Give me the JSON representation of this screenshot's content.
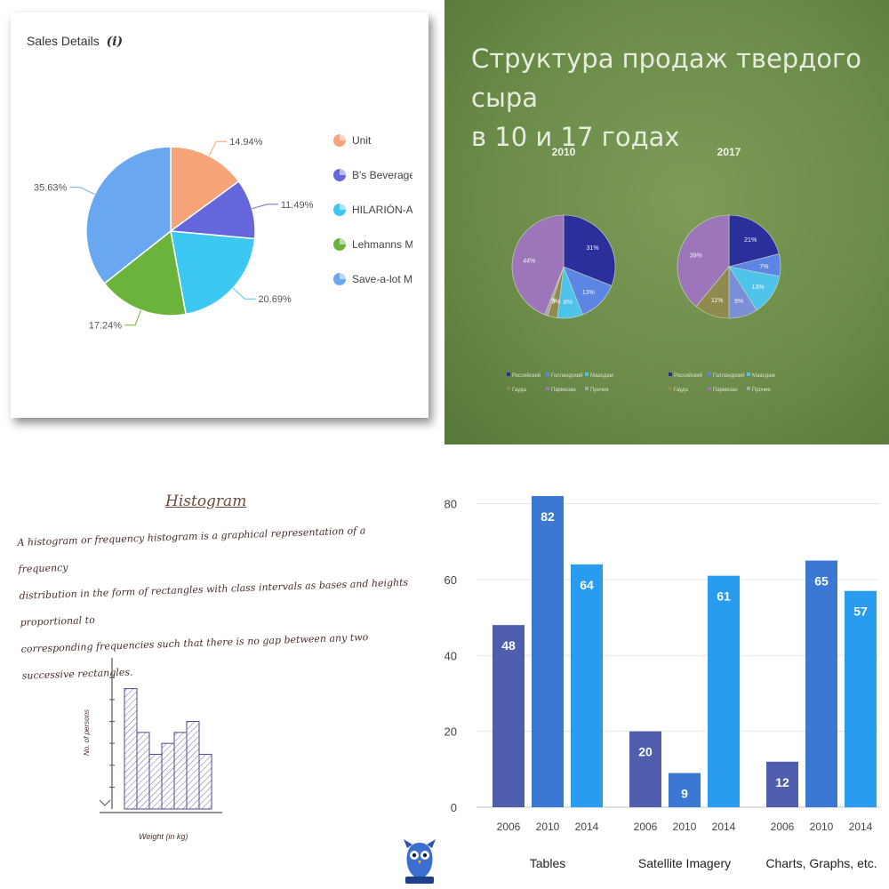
{
  "panel_pie": {
    "title": "Sales Details",
    "info_icon_label": "i",
    "chart_data": {
      "type": "pie",
      "title": "Sales Details",
      "slices": [
        {
          "label": "Unit",
          "value": 14.94,
          "value_label": "14.94%",
          "color": "#f8a47a"
        },
        {
          "label": "B's Beverages",
          "value": 11.49,
          "value_label": "11.49%",
          "color": "#6468dc"
        },
        {
          "label": "HILARIÓN-Abas",
          "value": 20.69,
          "value_label": "20.69%",
          "color": "#3dc8f3"
        },
        {
          "label": "Lehmanns Mar",
          "value": 17.24,
          "value_label": "17.24%",
          "color": "#6bb33b"
        },
        {
          "label": "Save-a-lot Mark",
          "value": 35.63,
          "value_label": "35.63%",
          "color": "#69a8f1"
        }
      ],
      "legend_position": "right"
    }
  },
  "panel_cheese": {
    "title_line1": "Структура продаж твердого сыра",
    "title_line2": "в 10 и 17 годах",
    "chart_data": [
      {
        "type": "pie",
        "title": "2010",
        "slices": [
          {
            "label": "",
            "value": 31,
            "value_label": "31%",
            "color": "#2b2f9c"
          },
          {
            "label": "",
            "value": 13,
            "value_label": "13%",
            "color": "#5d86e4"
          },
          {
            "label": "",
            "value": 8,
            "value_label": "8%",
            "color": "#4fc3ea"
          },
          {
            "label": "",
            "value": 3,
            "value_label": "3%",
            "color": "#8f8a4e"
          },
          {
            "label": "",
            "value": 1,
            "value_label": "1%",
            "color": "#a7a3a6"
          },
          {
            "label": "",
            "value": 44,
            "value_label": "44%",
            "color": "#9d76ba"
          }
        ]
      },
      {
        "type": "pie",
        "title": "2017",
        "slices": [
          {
            "label": "",
            "value": 21,
            "value_label": "21%",
            "color": "#2b2f9c"
          },
          {
            "label": "",
            "value": 7,
            "value_label": "7%",
            "color": "#5d86e4"
          },
          {
            "label": "",
            "value": 13,
            "value_label": "13%",
            "color": "#4fc3ea"
          },
          {
            "label": "",
            "value": 9,
            "value_label": "9%",
            "color": "#7a8fd6"
          },
          {
            "label": "",
            "value": 11,
            "value_label": "11%",
            "color": "#8f8a4e"
          },
          {
            "label": "",
            "value": 39,
            "value_label": "39%",
            "color": "#9d76ba"
          }
        ]
      }
    ],
    "legend_rows": [
      [
        {
          "label": "Российский",
          "color": "#2b2f9c"
        },
        {
          "label": "Голландский",
          "color": "#5d86e4"
        },
        {
          "label": "Маасдам",
          "color": "#4fc3ea"
        }
      ],
      [
        {
          "label": "Гауда",
          "color": "#8f8a4e"
        },
        {
          "label": "Пармезан",
          "color": "#9d76ba"
        },
        {
          "label": "Прочие",
          "color": "#a7a3a6"
        }
      ]
    ]
  },
  "panel_histogram": {
    "title": "Histogram",
    "text_line1": "A histogram or frequency histogram is a graphical representation of a frequency",
    "text_line2": "distribution in the form of rectangles with class intervals as bases and heights proportional to",
    "text_line3": "corresponding frequencies such that there is no gap between any two successive rectangles.",
    "ylabel": "No. of persons",
    "xlabel": "Weight (in kg)",
    "chart_data": {
      "type": "bar",
      "title": "",
      "xlabel": "Weight (in kg)",
      "ylabel": "No. of persons",
      "values": [
        11,
        7,
        5,
        6,
        7,
        8,
        5
      ],
      "ylim": [
        0,
        13
      ]
    }
  },
  "panel_bars": {
    "chart_data": {
      "type": "bar",
      "groups": [
        "Tables",
        "Satellite Imagery",
        "Charts, Graphs, etc."
      ],
      "sub_categories": [
        "2006",
        "2010",
        "2014"
      ],
      "series": [
        {
          "values": [
            48,
            20,
            12
          ],
          "color": "#4f5fae"
        },
        {
          "values": [
            82,
            9,
            65
          ],
          "color": "#3a78d4"
        },
        {
          "values": [
            64,
            61,
            57
          ],
          "color": "#2a9cf0"
        }
      ],
      "ylim": [
        0,
        82
      ],
      "yticks": [
        0,
        20,
        40,
        60,
        80
      ],
      "grid": true
    }
  }
}
